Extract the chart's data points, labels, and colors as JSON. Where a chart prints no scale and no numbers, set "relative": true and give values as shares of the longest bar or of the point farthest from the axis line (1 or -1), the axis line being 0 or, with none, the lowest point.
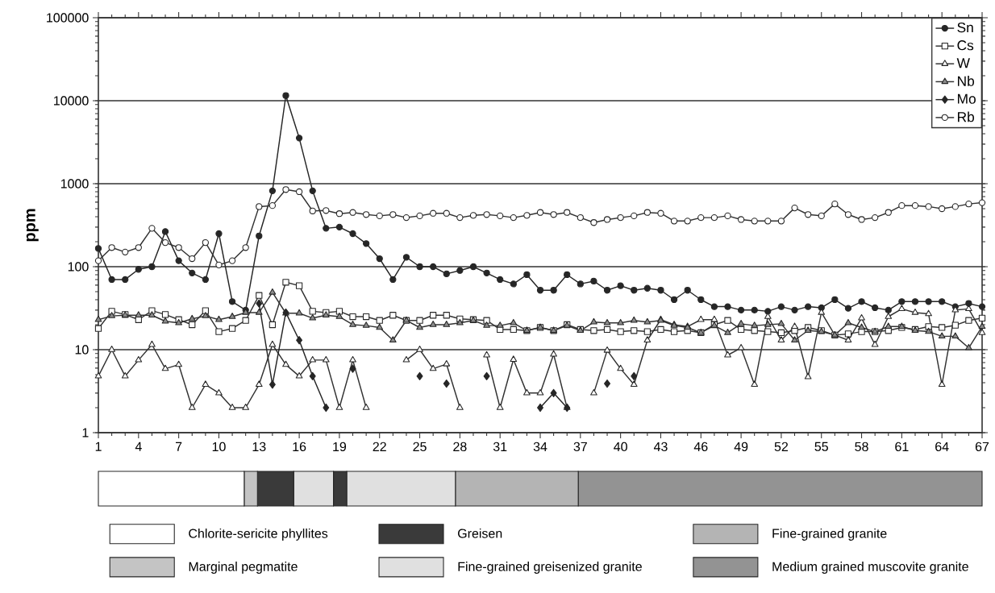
{
  "chart_data": [
    {
      "type": "line",
      "ylabel": "ppm",
      "log": "y",
      "grid": "y",
      "legend": "top right",
      "x": [
        1,
        2,
        3,
        4,
        5,
        6,
        7,
        8,
        9,
        10,
        11,
        12,
        13,
        14,
        15,
        16,
        17,
        18,
        19,
        20,
        21,
        22,
        23,
        24,
        25,
        26,
        27,
        28,
        29,
        30,
        31,
        32,
        33,
        34,
        35,
        36,
        37,
        38,
        39,
        40,
        41,
        42,
        43,
        44,
        45,
        46,
        47,
        48,
        49,
        50,
        51,
        52,
        53,
        54,
        55,
        56,
        57,
        58,
        59,
        60,
        61,
        62,
        63,
        64,
        65,
        66,
        67
      ],
      "xlim": [
        1,
        67
      ],
      "xticks": [
        1,
        4,
        7,
        10,
        13,
        16,
        19,
        22,
        25,
        28,
        31,
        34,
        37,
        40,
        43,
        46,
        49,
        52,
        55,
        58,
        61,
        64,
        67
      ],
      "ylim": [
        1,
        100000
      ],
      "yticks": [
        1,
        10,
        100,
        1000,
        10000,
        100000
      ],
      "series": [
        {
          "name": "Sn",
          "color": "#262626",
          "marker": "circle",
          "values": [
            166,
            70,
            70,
            93,
            100,
            265,
            118,
            84,
            70,
            250,
            38,
            30,
            235,
            820,
            11500,
            3550,
            820,
            290,
            300,
            250,
            190,
            125,
            70,
            130,
            100,
            100,
            82,
            90,
            100,
            84,
            70,
            62,
            80,
            52,
            52,
            80,
            62,
            67,
            52,
            59,
            52,
            55,
            52,
            40,
            52,
            40,
            33,
            33,
            30,
            30,
            29,
            33,
            30,
            33,
            32,
            40,
            31.5,
            38,
            32,
            30,
            38,
            38,
            38,
            38,
            33,
            36,
            33
          ]
        },
        {
          "name": "Cs",
          "color": "#ffffff",
          "marker": "square",
          "values": [
            18,
            29,
            26.5,
            23,
            29.5,
            26.5,
            23,
            20,
            29.5,
            16.5,
            18,
            22.5,
            45,
            20,
            65,
            59,
            29,
            28,
            29,
            25,
            25,
            22.5,
            26,
            22.5,
            22.5,
            26,
            26,
            23.5,
            23,
            22.5,
            17.5,
            17.5,
            17,
            18.5,
            17,
            20,
            17.5,
            17,
            17.5,
            16.5,
            17,
            16.5,
            17.5,
            16.5,
            17,
            16,
            20,
            22.5,
            17.5,
            17,
            16.5,
            16,
            17,
            18.5,
            17,
            15,
            15.5,
            16.5,
            16.5,
            17,
            18.5,
            17.5,
            19,
            18.5,
            19.7,
            22.5,
            24
          ]
        },
        {
          "name": "W",
          "color": "#ffffff",
          "marker": "triangle",
          "values": [
            4.8,
            10,
            4.8,
            7.5,
            11.5,
            5.9,
            6.6,
            2,
            3.8,
            3,
            2,
            2,
            3.8,
            11.5,
            6.6,
            4.8,
            7.5,
            7.5,
            2,
            7.5,
            2,
            null,
            null,
            7.5,
            10,
            5.9,
            6.7,
            2,
            null,
            8.6,
            2,
            7.6,
            3,
            3,
            8.8,
            2,
            null,
            3,
            9.8,
            5.9,
            3.8,
            13,
            23,
            20,
            19,
            23,
            23,
            8.6,
            10.5,
            3.8,
            25,
            13,
            19,
            4.7,
            28,
            15,
            13,
            24,
            11.5,
            25,
            31,
            28,
            27,
            3.8,
            30,
            31,
            16
          ]
        },
        {
          "name": "Nb",
          "color": "#8c8c8c",
          "marker": "triangle",
          "values": [
            23,
            25.5,
            26,
            26,
            26,
            22,
            21,
            23.5,
            25.5,
            23,
            25,
            28,
            28,
            49,
            27.5,
            27.5,
            24,
            26,
            25,
            20,
            19.5,
            18.5,
            13,
            22.5,
            18.5,
            20,
            20,
            21,
            22.5,
            19.5,
            19.5,
            21,
            17,
            18.5,
            17,
            19.5,
            17,
            21.5,
            21,
            21,
            22.5,
            21.5,
            22.5,
            19.5,
            18.5,
            16,
            19.5,
            16,
            20.5,
            19.5,
            20,
            20.5,
            13,
            17,
            16.5,
            15,
            21,
            18.5,
            16.5,
            19,
            19,
            17,
            16.5,
            14.5,
            14.5,
            10.5,
            19
          ]
        },
        {
          "name": "Mo",
          "color": "#262626",
          "marker": "diamond",
          "values": [
            null,
            null,
            null,
            null,
            null,
            null,
            null,
            null,
            null,
            null,
            null,
            null,
            36,
            3.8,
            28,
            13,
            4.8,
            2,
            null,
            5.9,
            null,
            null,
            null,
            null,
            4.8,
            null,
            3.9,
            null,
            null,
            4.8,
            null,
            null,
            null,
            2,
            3,
            2,
            null,
            null,
            3.9,
            null,
            4.8,
            null,
            null,
            null,
            null,
            null,
            null,
            null,
            null,
            null,
            null,
            null,
            null,
            null,
            null,
            null,
            null,
            null,
            null,
            null,
            null,
            null,
            null,
            null,
            null,
            null,
            null
          ]
        },
        {
          "name": "Rb",
          "color": "#ffffff",
          "marker": "circle",
          "values": [
            118,
            170,
            150,
            170,
            290,
            195,
            170,
            125,
            195,
            105,
            118,
            170,
            530,
            545,
            850,
            800,
            470,
            475,
            435,
            450,
            425,
            410,
            425,
            390,
            410,
            440,
            440,
            390,
            415,
            425,
            410,
            390,
            415,
            450,
            425,
            450,
            390,
            340,
            370,
            390,
            410,
            450,
            440,
            355,
            355,
            390,
            390,
            410,
            370,
            355,
            355,
            355,
            510,
            425,
            410,
            570,
            425,
            370,
            390,
            450,
            545,
            545,
            530,
            500,
            530,
            570,
            590
          ]
        }
      ]
    },
    {
      "type": "bar",
      "orientation": "horizontal",
      "stacked": true,
      "relative": true,
      "legend": "bottom",
      "categories": [
        null
      ],
      "series": [
        {
          "name": "Chlorite-sericite phyllites",
          "color": "#ffffff",
          "values": [
            0.165
          ]
        },
        {
          "name": "Marginal pegmatite",
          "color": "#c4c4c4",
          "values": [
            0.015
          ]
        },
        {
          "name": "Greisen",
          "color": "#3a3a3a",
          "values": [
            0.041
          ]
        },
        {
          "name": "Fine-grained greisenized granite",
          "color": "#e0e0e0",
          "values": [
            0.045
          ]
        },
        {
          "color": "#3a3a3a",
          "values": [
            0.015
          ]
        },
        {
          "color": "#e0e0e0",
          "values": [
            0.123
          ]
        },
        {
          "name": "Fine-grained granite",
          "color": "#b4b4b4",
          "values": [
            0.139
          ]
        },
        {
          "name": "Medium grained muscovite granite",
          "color": "#939393",
          "values": [
            0.457
          ]
        }
      ]
    }
  ]
}
